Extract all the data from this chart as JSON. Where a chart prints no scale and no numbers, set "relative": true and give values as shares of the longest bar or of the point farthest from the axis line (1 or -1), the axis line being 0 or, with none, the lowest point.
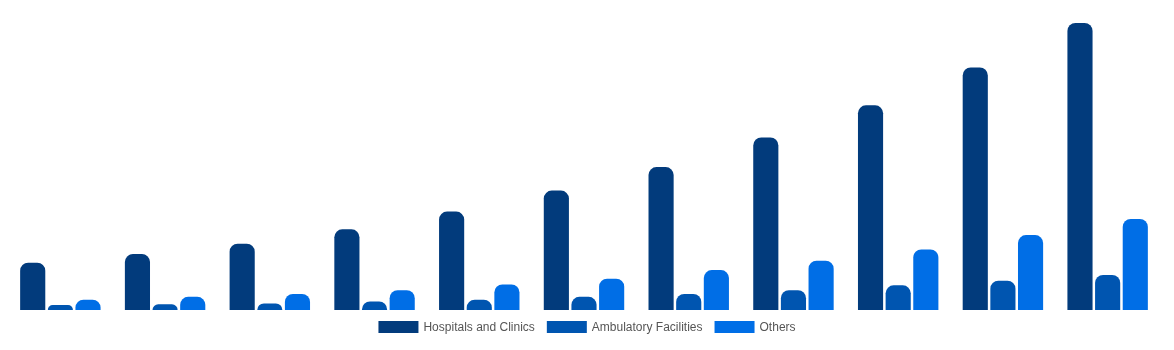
{
  "chart_data": {
    "type": "bar",
    "relative": true,
    "categories": [
      null,
      null,
      null,
      null,
      null,
      null,
      null,
      null,
      null,
      null,
      null
    ],
    "series": [
      {
        "name": "Hospitals and Clinics",
        "color": "#023b7c",
        "values": [
          0.165,
          0.195,
          0.231,
          0.281,
          0.343,
          0.416,
          0.498,
          0.601,
          0.713,
          0.845,
          1
        ]
      },
      {
        "name": "Ambulatory Facilities",
        "color": "#0055b0",
        "values": [
          0.017,
          0.02,
          0.023,
          0.03,
          0.036,
          0.046,
          0.056,
          0.069,
          0.086,
          0.102,
          0.122
        ]
      },
      {
        "name": "Others",
        "color": "#006ee6",
        "values": [
          0.036,
          0.046,
          0.056,
          0.069,
          0.089,
          0.109,
          0.139,
          0.172,
          0.211,
          0.261,
          0.317
        ]
      }
    ],
    "legend": "bottom"
  }
}
